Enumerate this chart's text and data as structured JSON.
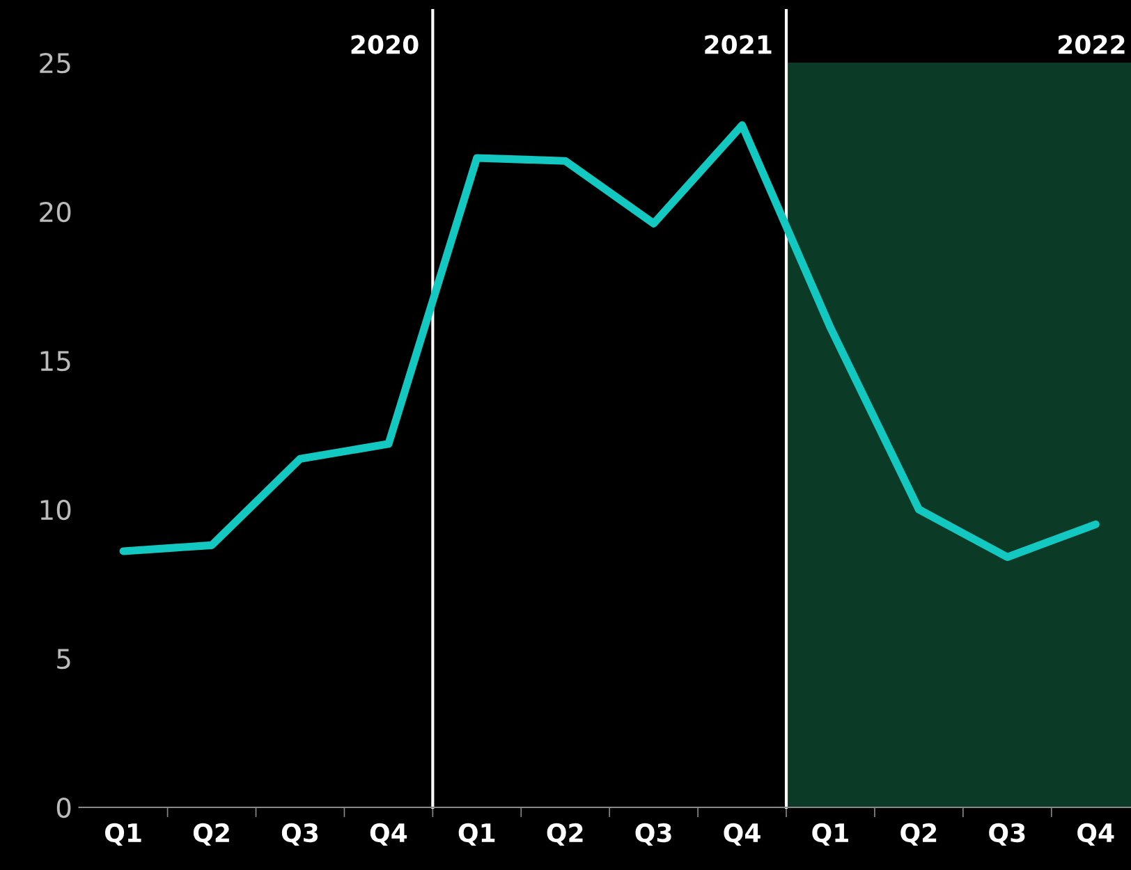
{
  "chart_data": {
    "type": "line",
    "categories": [
      "Q1",
      "Q2",
      "Q3",
      "Q4",
      "Q1",
      "Q2",
      "Q3",
      "Q4",
      "Q1",
      "Q2",
      "Q3",
      "Q4"
    ],
    "series": [
      {
        "color": "#12c8c0",
        "values": [
          8.6,
          8.8,
          11.7,
          12.2,
          21.8,
          21.7,
          19.6,
          22.9,
          16.1,
          10.0,
          8.4,
          9.5
        ]
      }
    ],
    "ylim": [
      0,
      25
    ],
    "yticks": [
      0,
      5,
      10,
      15,
      20,
      25
    ],
    "grid": false,
    "legend": false,
    "marker": "none",
    "line_style": "solid",
    "annotations": [
      "2020",
      "2021",
      "2022"
    ]
  }
}
